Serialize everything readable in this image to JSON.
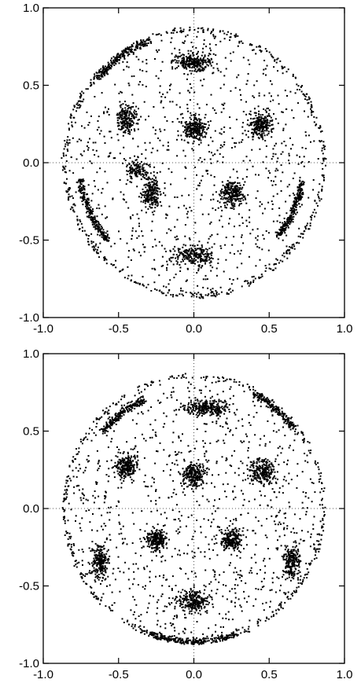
{
  "chart_data": [
    {
      "type": "scatter",
      "xlim": [
        -1.0,
        1.0
      ],
      "ylim": [
        -1.0,
        1.0
      ],
      "xticks": [
        "-1.0",
        "-0.5",
        "0.0",
        "0.5",
        "1.0"
      ],
      "yticks": [
        "-1.0",
        "-0.5",
        "0.0",
        "0.5",
        "1.0"
      ],
      "grid": "dotted zero lines",
      "point_color": "#000000",
      "boundary_radius": 0.87,
      "clusters": [
        {
          "x": 0.0,
          "y": 0.65,
          "rx": 0.13,
          "ry": 0.06,
          "weight": 260
        },
        {
          "x": 0.0,
          "y": 0.22,
          "rx": 0.08,
          "ry": 0.08,
          "weight": 240
        },
        {
          "x": 0.44,
          "y": 0.24,
          "rx": 0.08,
          "ry": 0.08,
          "weight": 220
        },
        {
          "x": -0.45,
          "y": 0.28,
          "rx": 0.06,
          "ry": 0.09,
          "weight": 200
        },
        {
          "x": -0.28,
          "y": -0.2,
          "rx": 0.06,
          "ry": 0.1,
          "weight": 200
        },
        {
          "x": 0.25,
          "y": -0.2,
          "rx": 0.08,
          "ry": 0.08,
          "weight": 240
        },
        {
          "x": 0.0,
          "y": -0.6,
          "rx": 0.15,
          "ry": 0.06,
          "weight": 240
        },
        {
          "x": -0.38,
          "y": -0.05,
          "rx": 0.07,
          "ry": 0.06,
          "weight": 120
        }
      ],
      "arcs": [
        {
          "center_deg": 125,
          "span_deg": 30,
          "radius": 0.84,
          "weight": 220
        },
        {
          "center_deg": 205,
          "span_deg": 34,
          "radius": 0.76,
          "weight": 240
        },
        {
          "center_deg": 335,
          "span_deg": 32,
          "radius": 0.73,
          "weight": 240
        },
        {
          "center_deg": 0,
          "span_deg": 360,
          "radius": 0.86,
          "weight": 520
        }
      ],
      "background_points": 900,
      "seed": 7
    },
    {
      "type": "scatter",
      "xlim": [
        -1.0,
        1.0
      ],
      "ylim": [
        -1.0,
        1.0
      ],
      "xticks": [
        "-1.0",
        "-0.5",
        "0.0",
        "0.5",
        "1.0"
      ],
      "yticks": [
        "-1.0",
        "-0.5",
        "0.0",
        "0.5",
        "1.0"
      ],
      "grid": "dotted zero lines",
      "point_color": "#000000",
      "boundary_radius": 0.87,
      "clusters": [
        {
          "x": 0.08,
          "y": 0.65,
          "rx": 0.14,
          "ry": 0.05,
          "weight": 260
        },
        {
          "x": 0.0,
          "y": 0.22,
          "rx": 0.08,
          "ry": 0.08,
          "weight": 240
        },
        {
          "x": 0.45,
          "y": 0.24,
          "rx": 0.09,
          "ry": 0.08,
          "weight": 240
        },
        {
          "x": -0.45,
          "y": 0.27,
          "rx": 0.07,
          "ry": 0.08,
          "weight": 220
        },
        {
          "x": -0.25,
          "y": -0.2,
          "rx": 0.07,
          "ry": 0.07,
          "weight": 220
        },
        {
          "x": 0.25,
          "y": -0.2,
          "rx": 0.07,
          "ry": 0.07,
          "weight": 220
        },
        {
          "x": 0.0,
          "y": -0.6,
          "rx": 0.1,
          "ry": 0.07,
          "weight": 240
        },
        {
          "x": -0.62,
          "y": -0.35,
          "rx": 0.05,
          "ry": 0.12,
          "weight": 220
        },
        {
          "x": 0.65,
          "y": -0.35,
          "rx": 0.05,
          "ry": 0.1,
          "weight": 200
        }
      ],
      "arcs": [
        {
          "center_deg": 128,
          "span_deg": 26,
          "radius": 0.78,
          "weight": 220
        },
        {
          "center_deg": 50,
          "span_deg": 24,
          "radius": 0.84,
          "weight": 180
        },
        {
          "center_deg": 270,
          "span_deg": 40,
          "radius": 0.86,
          "weight": 240
        },
        {
          "center_deg": 0,
          "span_deg": 360,
          "radius": 0.86,
          "weight": 420
        }
      ],
      "background_points": 1000,
      "seed": 13
    }
  ]
}
